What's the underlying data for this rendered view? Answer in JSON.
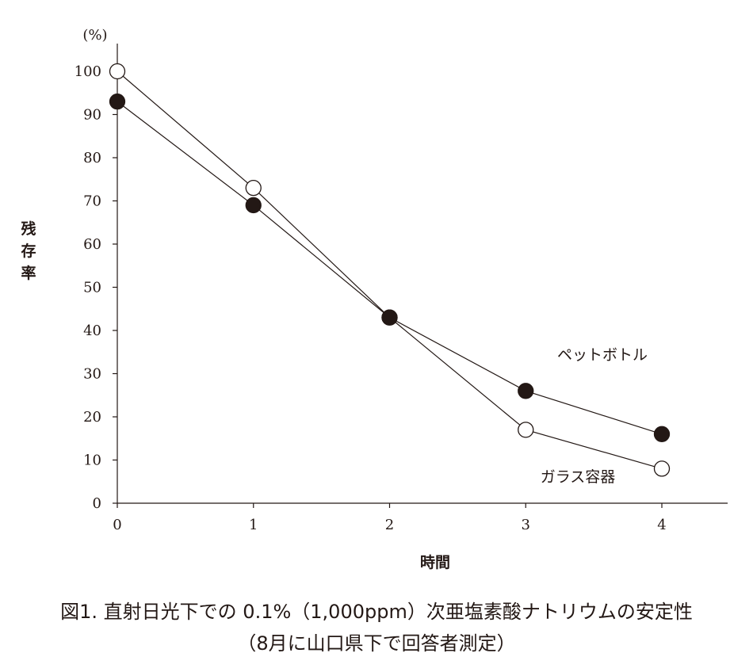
{
  "chart_data": {
    "type": "line",
    "x": [
      0,
      1,
      2,
      3,
      4
    ],
    "series": [
      {
        "name": "ペットボトル",
        "values": [
          93,
          69,
          43,
          26,
          16
        ],
        "marker": "filled-circle",
        "color": "#231815"
      },
      {
        "name": "ガラス容器",
        "values": [
          100,
          73,
          43,
          17,
          8
        ],
        "marker": "open-circle",
        "color": "#231815"
      }
    ],
    "xlabel": "時間",
    "ylabel": "残存率",
    "yunit": "(%)",
    "xlim": [
      0,
      4
    ],
    "ylim": [
      0,
      100
    ],
    "yticks": [
      0,
      10,
      20,
      30,
      40,
      50,
      60,
      70,
      80,
      90,
      100
    ],
    "xticks": [
      0,
      1,
      2,
      3,
      4
    ],
    "grid": false,
    "legend": "inline-labels"
  },
  "caption": {
    "line1": "図1.  直射日光下での 0.1%（1,000ppm）次亜塩素酸ナトリウムの安定性",
    "line2": "（8月に山口県下で回答者測定）"
  }
}
